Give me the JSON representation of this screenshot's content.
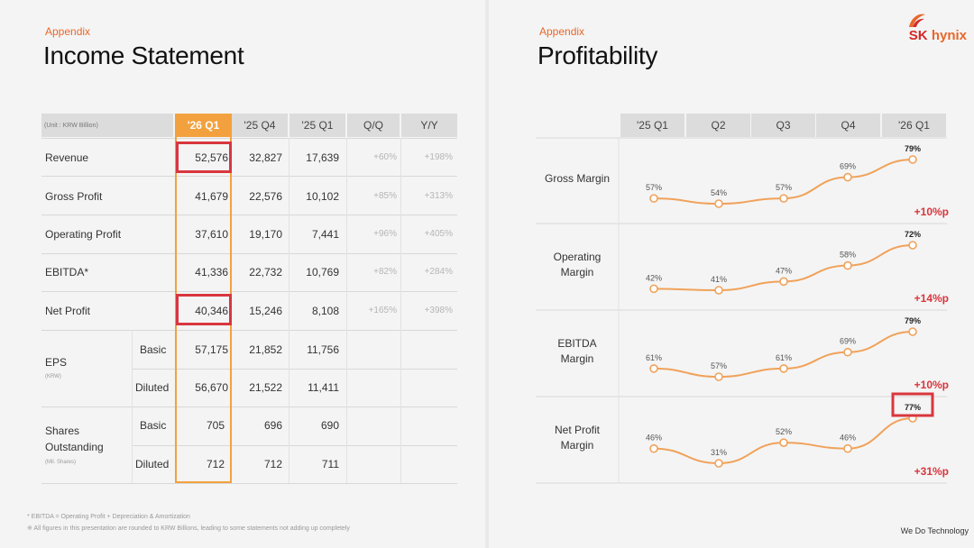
{
  "left": {
    "appendix": "Appendix",
    "title": "Income Statement",
    "unit": "(Unit : KRW Billion)",
    "columns": [
      "'26 Q1",
      "'25 Q4",
      "'25 Q1",
      "Q/Q",
      "Y/Y"
    ],
    "rows": [
      {
        "label": "Revenue",
        "values": [
          "52,576",
          "32,827",
          "17,639"
        ],
        "qq": "+60%",
        "yy": "+198%"
      },
      {
        "label": "Gross Profit",
        "values": [
          "41,679",
          "22,576",
          "10,102"
        ],
        "qq": "+85%",
        "yy": "+313%"
      },
      {
        "label": "Operating Profit",
        "values": [
          "37,610",
          "19,170",
          "7,441"
        ],
        "qq": "+96%",
        "yy": "+405%"
      },
      {
        "label": "EBITDA*",
        "values": [
          "41,336",
          "22,732",
          "10,769"
        ],
        "qq": "+82%",
        "yy": "+284%"
      },
      {
        "label": "Net Profit",
        "values": [
          "40,346",
          "15,246",
          "8,108"
        ],
        "qq": "+165%",
        "yy": "+398%"
      }
    ],
    "eps": {
      "label": "EPS",
      "sub": "(KRW)",
      "basic": {
        "label": "Basic",
        "values": [
          "57,175",
          "21,852",
          "11,756"
        ]
      },
      "diluted": {
        "label": "Diluted",
        "values": [
          "56,670",
          "21,522",
          "11,411"
        ]
      }
    },
    "shares": {
      "label1": "Shares",
      "label2": "Outstanding",
      "sub": "(Mil. Shares)",
      "basic": {
        "label": "Basic",
        "values": [
          "705",
          "696",
          "690"
        ]
      },
      "diluted": {
        "label": "Diluted",
        "values": [
          "712",
          "712",
          "711"
        ]
      }
    },
    "footnote1": "* EBITDA = Operating Profit + Depreciation & Amortization",
    "footnote2": "※ All figures in this presentation are rounded to KRW Billions, leading to some statements not adding up completely"
  },
  "right": {
    "appendix": "Appendix",
    "title": "Profitability",
    "logo_sk": "SK",
    "logo_hynix": "hynix",
    "tagline": "We Do Technology"
  },
  "chart_data": {
    "type": "line",
    "categories": [
      "'25 Q1",
      "Q2",
      "Q3",
      "Q4",
      "'26 Q1"
    ],
    "series": [
      {
        "name": "Gross Margin",
        "values": [
          57,
          54,
          57,
          69,
          79
        ],
        "change": "+10%p"
      },
      {
        "name": "Operating Margin",
        "values": [
          42,
          41,
          47,
          58,
          72
        ],
        "change": "+14%p"
      },
      {
        "name": "EBITDA Margin",
        "values": [
          61,
          57,
          61,
          69,
          79
        ],
        "change": "+10%p"
      },
      {
        "name": "Net Profit Margin",
        "values": [
          46,
          31,
          52,
          46,
          77
        ],
        "change": "+31%p"
      }
    ],
    "labels_display": [
      [
        "57%",
        "54%",
        "57%",
        "69%",
        "79%"
      ],
      [
        "42%",
        "41%",
        "47%",
        "58%",
        "72%"
      ],
      [
        "61%",
        "57%",
        "61%",
        "69%",
        "79%"
      ],
      [
        "46%",
        "31%",
        "52%",
        "46%",
        "77%"
      ]
    ],
    "series_labels": [
      [
        "Gross Margin"
      ],
      [
        "Operating",
        "Margin"
      ],
      [
        "EBITDA",
        "Margin"
      ],
      [
        "Net Profit",
        "Margin"
      ]
    ],
    "colors": {
      "line": "#f0a25a",
      "marker_fill": "#ffffff",
      "change": "#d9363e",
      "highlight": "#f3a13e"
    }
  }
}
